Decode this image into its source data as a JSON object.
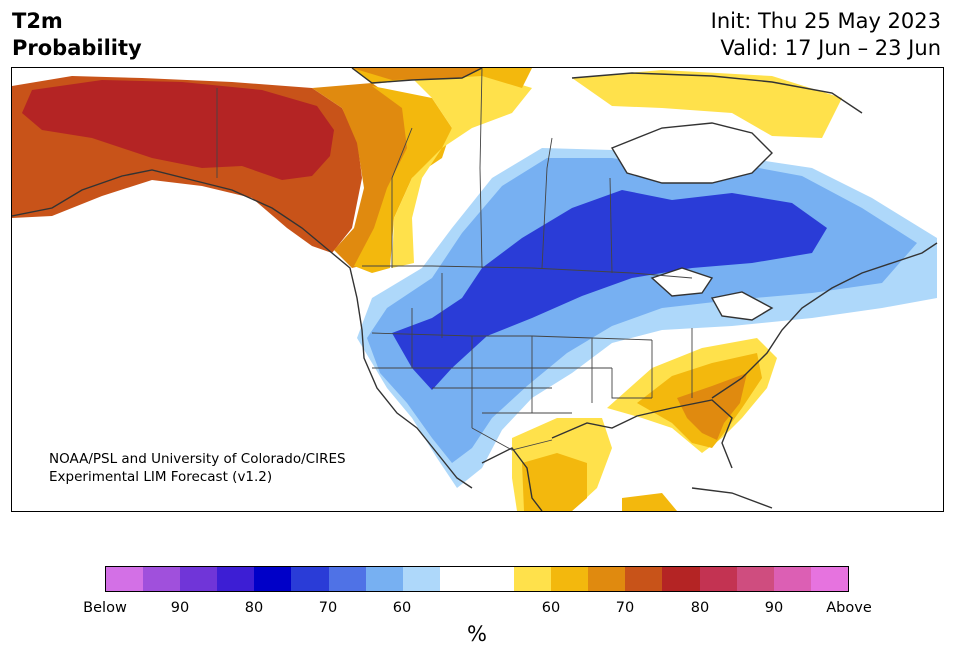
{
  "header": {
    "title_line1": "T2m",
    "title_line2": "Probability",
    "init": "Init: Thu 25 May 2023",
    "valid": "Valid: 17 Jun – 23 Jun"
  },
  "map": {
    "credit_line1": "NOAA/PSL and University of Colorado/CIRES",
    "credit_line2": "Experimental LIM Forecast (v1.2)"
  },
  "colorbar": {
    "unit": "%",
    "colors": [
      "#d370e6",
      "#a050dc",
      "#7035d8",
      "#3d1ed4",
      "#0000c8",
      "#2a3cd7",
      "#4f72e6",
      "#77b0f2",
      "#aed8fa",
      "#ffffff",
      "#ffffff",
      "#ffe14b",
      "#f3b80d",
      "#e08a0f",
      "#c85319",
      "#b42424",
      "#c33352",
      "#cf4d7f",
      "#dc5fb4",
      "#e673df"
    ],
    "ticks": [
      "Below",
      "90",
      "80",
      "70",
      "60",
      "60",
      "70",
      "80",
      "90",
      "Above"
    ]
  },
  "colors": {
    "below_strong": "#2a3cd7",
    "below_mid": "#4f72e6",
    "below_light": "#77b0f2",
    "below_faint": "#aed8fa",
    "above_faint": "#ffe14b",
    "above_light": "#f3b80d",
    "above_mid": "#e08a0f",
    "above_strong": "#c85319",
    "above_max": "#b42424"
  }
}
